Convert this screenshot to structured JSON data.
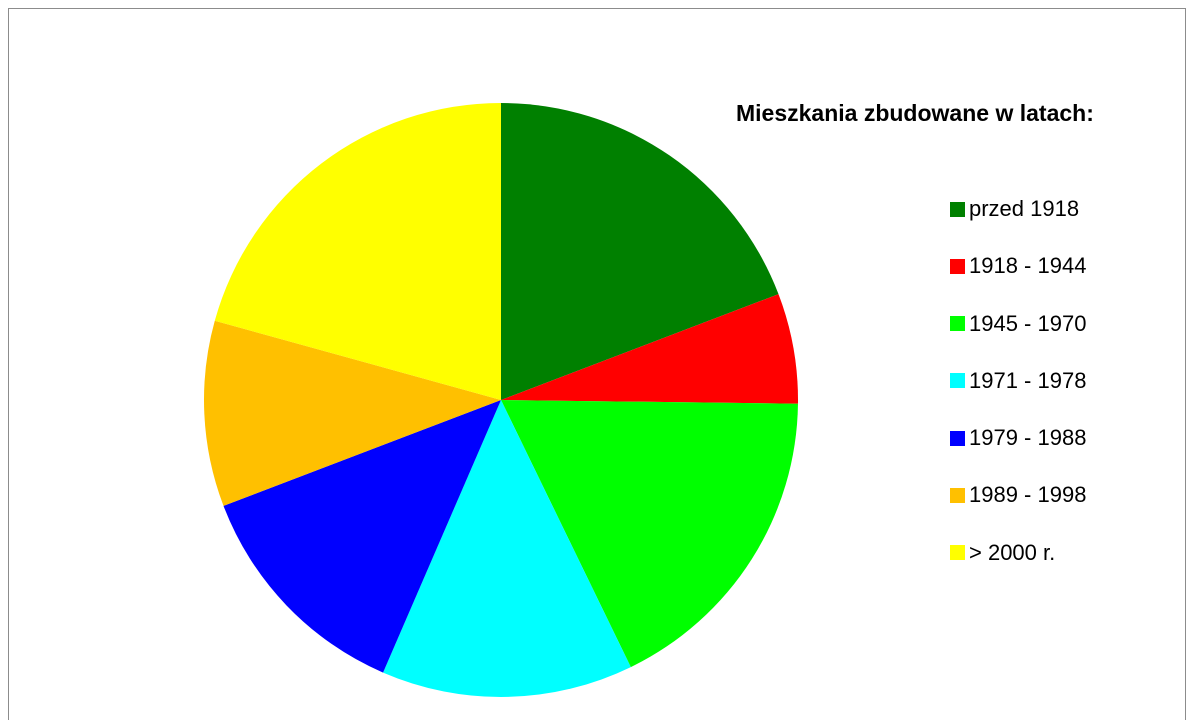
{
  "chart_data": {
    "type": "pie",
    "title": "Mieszkania zbudowane w latach:",
    "start_angle_deg": 0,
    "direction": "clockwise",
    "legend_position": "right",
    "categories": [
      "przed 1918",
      "1918 - 1944",
      "1945 - 1970",
      "1971 - 1978",
      "1979 - 1988",
      "1989 - 1998",
      "> 2000 r."
    ],
    "values": [
      19.2,
      6.0,
      17.6,
      13.7,
      12.7,
      10.1,
      20.7
    ],
    "colors": [
      "#008000",
      "#ff0000",
      "#00ff00",
      "#00ffff",
      "#0000ff",
      "#ffc000",
      "#ffff00"
    ]
  }
}
